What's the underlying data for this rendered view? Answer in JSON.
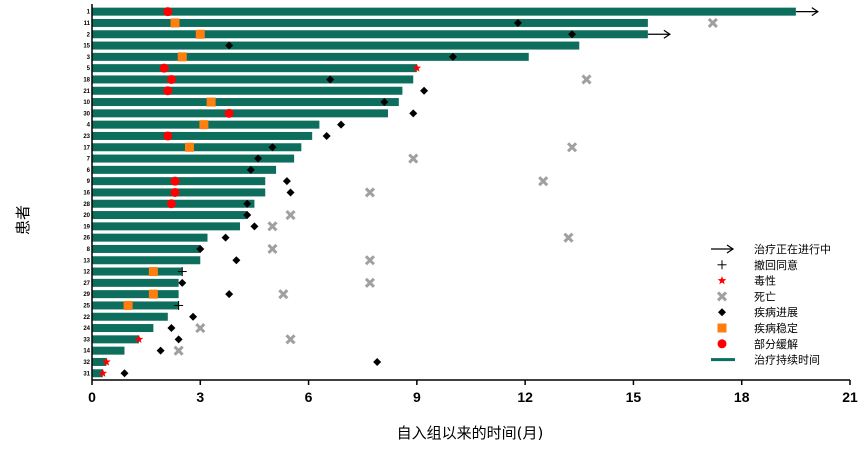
{
  "chart_data": {
    "type": "swimmer",
    "title": "",
    "xlabel": "自入组以来的时间(月)",
    "ylabel": "患者",
    "xlim": [
      0,
      21
    ],
    "xticks": [
      0,
      3,
      6,
      9,
      12,
      15,
      18,
      21
    ],
    "grid": false,
    "legend_position": "bottom-right",
    "colors": {
      "bar": "#0d6e5e",
      "progression": "#000000",
      "stable": "#ff7f0e",
      "partial_response": "#ff0000",
      "toxicity": "#ff0000",
      "death": "#a0a0a0",
      "withdraw": "#000000",
      "ongoing": "#000000"
    },
    "legend": [
      {
        "key": "ongoing",
        "label": "治疗正在进行中"
      },
      {
        "key": "withdraw",
        "label": "撤回同意"
      },
      {
        "key": "toxicity",
        "label": "毒性"
      },
      {
        "key": "death",
        "label": "死亡"
      },
      {
        "key": "progression",
        "label": "疾病进展"
      },
      {
        "key": "stable",
        "label": "疾病稳定"
      },
      {
        "key": "partial_response",
        "label": "部分缓解"
      },
      {
        "key": "duration",
        "label": "治疗持续时间"
      }
    ],
    "patients": [
      {
        "id": "1",
        "duration": 19.5,
        "ongoing": true,
        "pr": 2.1
      },
      {
        "id": "11",
        "duration": 15.4,
        "sd": 2.3,
        "progression": 11.8,
        "death": 17.2
      },
      {
        "id": "2",
        "duration": 15.4,
        "ongoing": true,
        "sd": 3.0,
        "progression": 13.3
      },
      {
        "id": "15",
        "duration": 13.5,
        "progression": 3.8
      },
      {
        "id": "3",
        "duration": 12.1,
        "sd": 2.5,
        "progression": 10.0
      },
      {
        "id": "5",
        "duration": 9.0,
        "pr": 2.0,
        "toxicity": 9.0
      },
      {
        "id": "18",
        "duration": 8.9,
        "pr": 2.2,
        "progression": 6.6,
        "death": 13.7
      },
      {
        "id": "21",
        "duration": 8.6,
        "pr": 2.1,
        "progression": 9.2
      },
      {
        "id": "10",
        "duration": 8.5,
        "sd": 3.3,
        "progression": 8.1
      },
      {
        "id": "30",
        "duration": 8.2,
        "pr": 3.8,
        "progression": 8.9
      },
      {
        "id": "4",
        "duration": 6.3,
        "sd": 3.1,
        "progression": 6.9
      },
      {
        "id": "23",
        "duration": 6.1,
        "pr": 2.1,
        "progression": 6.5
      },
      {
        "id": "17",
        "duration": 5.8,
        "sd": 2.7,
        "progression": 5.0,
        "death": 13.3
      },
      {
        "id": "7",
        "duration": 5.6,
        "progression": 4.6,
        "death": 8.9
      },
      {
        "id": "6",
        "duration": 5.1,
        "progression": 4.4
      },
      {
        "id": "9",
        "duration": 4.8,
        "pr": 2.3,
        "progression": 5.4,
        "death": 12.5
      },
      {
        "id": "16",
        "duration": 4.8,
        "pr": 2.3,
        "progression": 5.5,
        "death": 7.7
      },
      {
        "id": "28",
        "duration": 4.5,
        "pr": 2.2,
        "progression": 4.3
      },
      {
        "id": "20",
        "duration": 4.3,
        "progression": 4.3,
        "death": 5.5
      },
      {
        "id": "19",
        "duration": 4.1,
        "progression": 4.5,
        "death": 5.0
      },
      {
        "id": "26",
        "duration": 3.2,
        "progression": 3.7,
        "death": 13.2
      },
      {
        "id": "8",
        "duration": 3.0,
        "progression": 3.0,
        "death": 5.0
      },
      {
        "id": "13",
        "duration": 3.0,
        "progression": 4.0,
        "death": 7.7
      },
      {
        "id": "12",
        "duration": 2.5,
        "sd": 1.7,
        "withdraw": 2.5
      },
      {
        "id": "27",
        "duration": 2.4,
        "progression": 2.5,
        "death": 7.7
      },
      {
        "id": "29",
        "duration": 2.4,
        "sd": 1.7,
        "progression": 3.8,
        "death": 5.3
      },
      {
        "id": "25",
        "duration": 2.4,
        "sd": 1.0,
        "withdraw": 2.4
      },
      {
        "id": "22",
        "duration": 2.1,
        "progression": 2.8
      },
      {
        "id": "24",
        "duration": 1.7,
        "progression": 2.2,
        "death": 3.0
      },
      {
        "id": "33",
        "duration": 1.3,
        "toxicity": 1.3,
        "progression": 2.4,
        "death": 5.5
      },
      {
        "id": "14",
        "duration": 0.9,
        "progression": 1.9,
        "death": 2.4
      },
      {
        "id": "32",
        "duration": 0.4,
        "toxicity": 0.4,
        "progression": 7.9
      },
      {
        "id": "31",
        "duration": 0.3,
        "toxicity": 0.3,
        "progression": 0.9
      }
    ]
  }
}
